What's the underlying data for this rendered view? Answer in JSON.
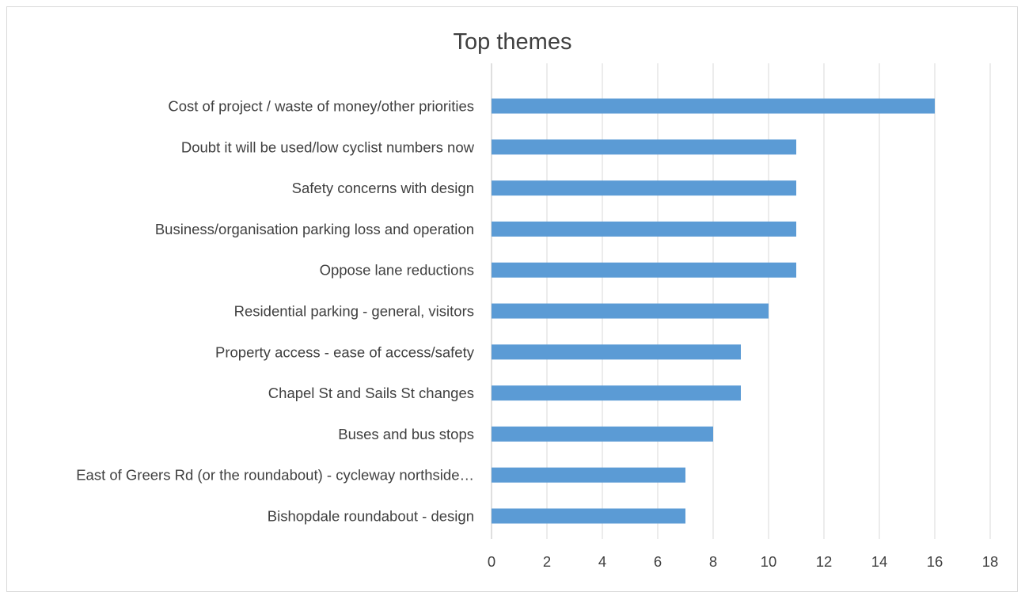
{
  "chart_data": {
    "type": "bar",
    "orientation": "horizontal",
    "title": "Top themes",
    "xlabel": "",
    "ylabel": "",
    "categories": [
      "Cost of project / waste of money/other priorities",
      "Doubt it will be used/low cyclist numbers now",
      "Safety concerns with design",
      "Business/organisation parking loss and operation",
      "Oppose lane reductions",
      "Residential parking - general, visitors",
      "Property access - ease of access/safety",
      "Chapel St and Sails St changes",
      "Buses and bus stops",
      "East of Greers Rd (or the roundabout) - cycleway northside…",
      "Bishopdale roundabout - design"
    ],
    "values": [
      16,
      11,
      11,
      11,
      11,
      10,
      9,
      9,
      8,
      7,
      7
    ],
    "xlim": [
      0,
      18
    ],
    "xticks": [
      0,
      2,
      4,
      6,
      8,
      10,
      12,
      14,
      16,
      18
    ],
    "grid": true,
    "bar_color": "#5b9bd5",
    "legend": "none"
  }
}
